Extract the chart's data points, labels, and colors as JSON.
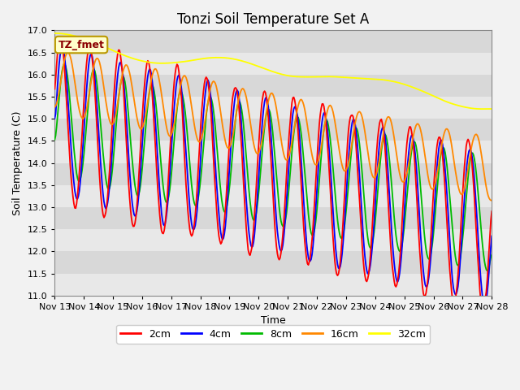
{
  "title": "Tonzi Soil Temperature Set A",
  "ylabel": "Soil Temperature (C)",
  "xlabel": "Time",
  "legend_label": "TZ_fmet",
  "series_labels": [
    "2cm",
    "4cm",
    "8cm",
    "16cm",
    "32cm"
  ],
  "series_colors": [
    "#ff0000",
    "#0000ff",
    "#00bb00",
    "#ff8800",
    "#ffff00"
  ],
  "ylim": [
    11.0,
    17.0
  ],
  "yticks": [
    11.0,
    11.5,
    12.0,
    12.5,
    13.0,
    13.5,
    14.0,
    14.5,
    15.0,
    15.5,
    16.0,
    16.5,
    17.0
  ],
  "xtick_labels": [
    "Nov 13",
    "Nov 14",
    "Nov 15",
    "Nov 16",
    "Nov 17",
    "Nov 18",
    "Nov 19",
    "Nov 20",
    "Nov 21",
    "Nov 22",
    "Nov 23",
    "Nov 24",
    "Nov 25",
    "Nov 26",
    "Nov 27",
    "Nov 28"
  ],
  "band_colors": [
    "#e8e8e8",
    "#d8d8d8"
  ],
  "title_fontsize": 12,
  "label_fontsize": 9,
  "tick_fontsize": 8,
  "legend_fontsize": 9
}
